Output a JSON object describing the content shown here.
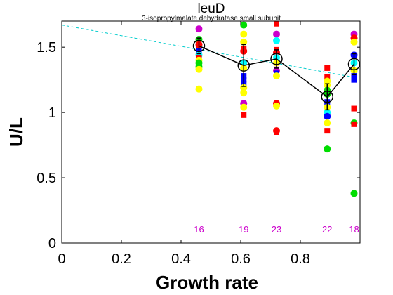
{
  "chart_data": {
    "type": "scatter",
    "title": "leuD",
    "subtitle": "3-isopropylmalate dehydratase small subunit",
    "xlabel": "Growth rate",
    "ylabel": "U/L",
    "xlim": [
      0,
      1.0
    ],
    "ylim": [
      0,
      1.7
    ],
    "x_ticks": [
      0,
      0.2,
      0.4,
      0.6,
      0.8
    ],
    "x_tick_labels": [
      "0",
      "0.2",
      "0.4",
      "0.6",
      "0.8"
    ],
    "y_ticks": [
      0,
      0.5,
      1,
      1.5
    ],
    "y_tick_labels": [
      "0",
      "0.5",
      "1",
      "1.5"
    ],
    "grid": false,
    "counts": [
      {
        "x": 0.46,
        "label": "16"
      },
      {
        "x": 0.61,
        "label": "19"
      },
      {
        "x": 0.72,
        "label": "23"
      },
      {
        "x": 0.89,
        "label": "22"
      },
      {
        "x": 0.98,
        "label": "18"
      }
    ],
    "count_color": "#cc00cc",
    "trend_line": {
      "x": [
        0,
        0.98
      ],
      "y": [
        1.67,
        1.27
      ],
      "color": "#00cccc"
    },
    "mean_series": {
      "x": [
        0.46,
        0.61,
        0.72,
        0.89,
        0.98
      ],
      "y": [
        1.51,
        1.36,
        1.41,
        1.12,
        1.37
      ],
      "err": [
        0.06,
        0.16,
        0.07,
        0.1,
        0.08
      ],
      "color": "#000000"
    },
    "points": [
      {
        "x": 0.46,
        "y": 1.64,
        "shape": "circle",
        "color": "#cc00cc"
      },
      {
        "x": 0.46,
        "y": 1.56,
        "shape": "circle",
        "color": "#00dd00"
      },
      {
        "x": 0.46,
        "y": 1.52,
        "shape": "circle",
        "color": "#ff0000"
      },
      {
        "x": 0.46,
        "y": 1.5,
        "shape": "square",
        "color": "#ff0000"
      },
      {
        "x": 0.46,
        "y": 1.47,
        "shape": "square",
        "color": "#0000ff"
      },
      {
        "x": 0.46,
        "y": 1.44,
        "shape": "circle",
        "color": "#00ffff"
      },
      {
        "x": 0.46,
        "y": 1.42,
        "shape": "square",
        "color": "#ff0000"
      },
      {
        "x": 0.46,
        "y": 1.4,
        "shape": "circle",
        "color": "#ffff00"
      },
      {
        "x": 0.46,
        "y": 1.38,
        "shape": "circle",
        "color": "#00dd00"
      },
      {
        "x": 0.46,
        "y": 1.35,
        "shape": "circle",
        "color": "#00dd00"
      },
      {
        "x": 0.46,
        "y": 1.33,
        "shape": "circle",
        "color": "#ffff00"
      },
      {
        "x": 0.46,
        "y": 1.18,
        "shape": "circle",
        "color": "#ffff00"
      },
      {
        "x": 0.61,
        "y": 1.67,
        "shape": "circle",
        "color": "#00dd00"
      },
      {
        "x": 0.61,
        "y": 1.6,
        "shape": "circle",
        "color": "#ffff00"
      },
      {
        "x": 0.61,
        "y": 1.54,
        "shape": "circle",
        "color": "#ffff00"
      },
      {
        "x": 0.61,
        "y": 1.49,
        "shape": "square",
        "color": "#ff0000"
      },
      {
        "x": 0.61,
        "y": 1.47,
        "shape": "circle",
        "color": "#ff0000"
      },
      {
        "x": 0.61,
        "y": 1.38,
        "shape": "circle",
        "color": "#00ffff"
      },
      {
        "x": 0.61,
        "y": 1.34,
        "shape": "circle",
        "color": "#ffff00"
      },
      {
        "x": 0.61,
        "y": 1.28,
        "shape": "square",
        "color": "#0000ff"
      },
      {
        "x": 0.61,
        "y": 1.25,
        "shape": "square",
        "color": "#0000ff"
      },
      {
        "x": 0.61,
        "y": 1.22,
        "shape": "square",
        "color": "#0000ff"
      },
      {
        "x": 0.61,
        "y": 1.19,
        "shape": "circle",
        "color": "#ffff00"
      },
      {
        "x": 0.61,
        "y": 1.15,
        "shape": "circle",
        "color": "#ffff00"
      },
      {
        "x": 0.61,
        "y": 1.07,
        "shape": "circle",
        "color": "#cc00cc"
      },
      {
        "x": 0.61,
        "y": 1.04,
        "shape": "circle",
        "color": "#ffff00"
      },
      {
        "x": 0.61,
        "y": 0.98,
        "shape": "square",
        "color": "#ff0000"
      },
      {
        "x": 0.72,
        "y": 1.68,
        "shape": "square",
        "color": "#ff0000"
      },
      {
        "x": 0.72,
        "y": 1.6,
        "shape": "circle",
        "color": "#cc00cc"
      },
      {
        "x": 0.72,
        "y": 1.55,
        "shape": "circle",
        "color": "#00ffff"
      },
      {
        "x": 0.72,
        "y": 1.48,
        "shape": "square",
        "color": "#ff0000"
      },
      {
        "x": 0.72,
        "y": 1.46,
        "shape": "circle",
        "color": "#ff0000"
      },
      {
        "x": 0.72,
        "y": 1.42,
        "shape": "circle",
        "color": "#00ffff"
      },
      {
        "x": 0.72,
        "y": 1.38,
        "shape": "circle",
        "color": "#ffff00"
      },
      {
        "x": 0.72,
        "y": 1.33,
        "shape": "square",
        "color": "#cc00cc"
      },
      {
        "x": 0.72,
        "y": 1.32,
        "shape": "circle",
        "color": "#cc00cc"
      },
      {
        "x": 0.72,
        "y": 1.3,
        "shape": "square",
        "color": "#0000ff"
      },
      {
        "x": 0.72,
        "y": 1.28,
        "shape": "circle",
        "color": "#ffff00"
      },
      {
        "x": 0.72,
        "y": 1.07,
        "shape": "circle",
        "color": "#ff0000"
      },
      {
        "x": 0.72,
        "y": 1.05,
        "shape": "circle",
        "color": "#ffff00"
      },
      {
        "x": 0.72,
        "y": 0.86,
        "shape": "circle",
        "color": "#ff0000"
      },
      {
        "x": 0.72,
        "y": 0.85,
        "shape": "square",
        "color": "#ff0000"
      },
      {
        "x": 0.89,
        "y": 1.34,
        "shape": "square",
        "color": "#ff0000"
      },
      {
        "x": 0.89,
        "y": 1.27,
        "shape": "square",
        "color": "#ff0000"
      },
      {
        "x": 0.89,
        "y": 1.24,
        "shape": "circle",
        "color": "#ffff00"
      },
      {
        "x": 0.89,
        "y": 1.21,
        "shape": "circle",
        "color": "#ffff00"
      },
      {
        "x": 0.89,
        "y": 1.17,
        "shape": "circle",
        "color": "#00dd00"
      },
      {
        "x": 0.89,
        "y": 1.14,
        "shape": "circle",
        "color": "#00dd00"
      },
      {
        "x": 0.89,
        "y": 1.08,
        "shape": "square",
        "color": "#0000ff"
      },
      {
        "x": 0.89,
        "y": 1.04,
        "shape": "circle",
        "color": "#ffff00"
      },
      {
        "x": 0.89,
        "y": 1.0,
        "shape": "circle",
        "color": "#00ffff"
      },
      {
        "x": 0.89,
        "y": 0.97,
        "shape": "circle",
        "color": "#0000ff"
      },
      {
        "x": 0.89,
        "y": 0.92,
        "shape": "circle",
        "color": "#ffff00"
      },
      {
        "x": 0.89,
        "y": 0.86,
        "shape": "square",
        "color": "#ff0000"
      },
      {
        "x": 0.89,
        "y": 0.72,
        "shape": "circle",
        "color": "#00dd00"
      },
      {
        "x": 0.98,
        "y": 1.6,
        "shape": "circle",
        "color": "#cc00cc"
      },
      {
        "x": 0.98,
        "y": 1.57,
        "shape": "circle",
        "color": "#ff0000"
      },
      {
        "x": 0.98,
        "y": 1.54,
        "shape": "circle",
        "color": "#ffff00"
      },
      {
        "x": 0.98,
        "y": 1.44,
        "shape": "circle",
        "color": "#0000ff"
      },
      {
        "x": 0.98,
        "y": 1.38,
        "shape": "circle",
        "color": "#00ffff"
      },
      {
        "x": 0.98,
        "y": 1.32,
        "shape": "circle",
        "color": "#ffff00"
      },
      {
        "x": 0.98,
        "y": 1.28,
        "shape": "square",
        "color": "#0000ff"
      },
      {
        "x": 0.98,
        "y": 1.25,
        "shape": "square",
        "color": "#0000ff"
      },
      {
        "x": 0.98,
        "y": 1.03,
        "shape": "square",
        "color": "#ff0000"
      },
      {
        "x": 0.98,
        "y": 0.92,
        "shape": "circle",
        "color": "#00dd00"
      },
      {
        "x": 0.98,
        "y": 0.91,
        "shape": "square",
        "color": "#ff0000"
      },
      {
        "x": 0.98,
        "y": 0.38,
        "shape": "circle",
        "color": "#00dd00"
      }
    ]
  }
}
